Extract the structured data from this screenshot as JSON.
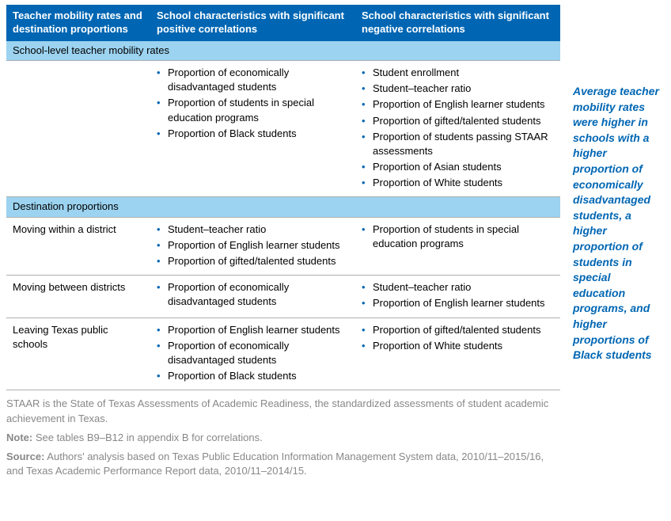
{
  "colors": {
    "header_bg": "#0066b3",
    "header_text": "#ffffff",
    "section_bg": "#9cd3f0",
    "bullet_color": "#0066b3",
    "notes_color": "#888888",
    "border_color": "#b0b0b0",
    "sidebar_color": "#0066b3"
  },
  "headers": {
    "col1": "Teacher mobility rates and destination proportions",
    "col2": "School characteristics with significant positive correlations",
    "col3": "School characteristics with significant negative correlations"
  },
  "section1": {
    "title": "School-level teacher mobility rates",
    "row_label": "",
    "positive": [
      "Proportion of economically disadvantaged students",
      "Proportion of students in special education programs",
      "Proportion of Black students"
    ],
    "negative": [
      "Student enrollment",
      "Student–teacher ratio",
      "Proportion of English learner students",
      "Proportion of gifted/talented students",
      "Proportion of students passing STAAR assessments",
      "Proportion of Asian students",
      "Proportion of White students"
    ]
  },
  "section2": {
    "title": "Destination proportions",
    "rows": [
      {
        "label": "Moving within a district",
        "positive": [
          "Student–teacher ratio",
          "Proportion of English learner students",
          "Proportion of gifted/talented students"
        ],
        "negative": [
          "Proportion of students in special education programs"
        ]
      },
      {
        "label": "Moving between districts",
        "positive": [
          "Proportion of economically disadvantaged students"
        ],
        "negative": [
          "Student–teacher ratio",
          "Proportion of English learner students"
        ]
      },
      {
        "label": "Leaving Texas public schools",
        "positive": [
          "Proportion of English learner students",
          "Proportion of economically disadvantaged students",
          "Proportion of Black students"
        ],
        "negative": [
          "Proportion of gifted/talented students",
          "Proportion of White students"
        ]
      }
    ]
  },
  "notes": {
    "staar": "STAAR is the State of Texas Assessments of Academic Readiness, the standardized assessments of student academic achievement in Texas.",
    "note_label": "Note:",
    "note_text": " See tables B9–B12 in appendix B for correlations.",
    "source_label": "Source:",
    "source_text": " Authors' analysis based on Texas Public Education Information Management System data, 2010/11–2015/16, and Texas Academic Performance Report data, 2010/11–2014/15."
  },
  "sidebar": "Average teacher mobility rates were higher in schools with a higher proportion of economically disadvantaged students, a higher proportion of students in special education programs, and higher proportions of Black students"
}
